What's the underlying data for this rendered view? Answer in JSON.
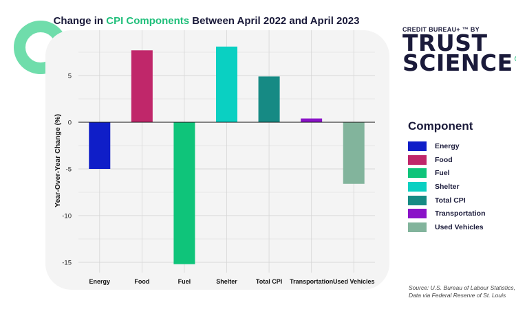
{
  "title": {
    "prefix": "Change in ",
    "highlight": "CPI Components",
    "suffix": " Between April 2022 and April 2023"
  },
  "brand": {
    "top": "CREDIT BUREAU+ ™ BY",
    "line1": "TRUST",
    "line2": "SCIENCE"
  },
  "legend_title": "Component",
  "source": {
    "line1": "Source: U.S. Bureau of Labour Statistics,",
    "line2": "Data via Federal Reserve of St. Louis"
  },
  "colors": {
    "title_highlight": "#1fbf7a",
    "ring": "#6fddab",
    "panel": "#f4f4f4"
  },
  "chart_data": {
    "type": "bar",
    "title": "Change in CPI Components Between April 2022 and April 2023",
    "xlabel": "",
    "ylabel": "Year-Over-Year Change (%)",
    "categories": [
      "Energy",
      "Food",
      "Fuel",
      "Shelter",
      "Total CPI",
      "Transportation",
      "Used Vehicles"
    ],
    "values": [
      -5.0,
      7.7,
      -15.2,
      8.1,
      4.9,
      0.4,
      -6.6
    ],
    "colors": [
      "#0f1ec8",
      "#c0276a",
      "#0fc47a",
      "#0ad0c2",
      "#168a84",
      "#8a13c8",
      "#82b49c"
    ],
    "ylim": [
      -15.8,
      8.7
    ],
    "yticks": [
      -15,
      -10,
      -5,
      0,
      5
    ],
    "grid": true,
    "legend_position": "right"
  }
}
